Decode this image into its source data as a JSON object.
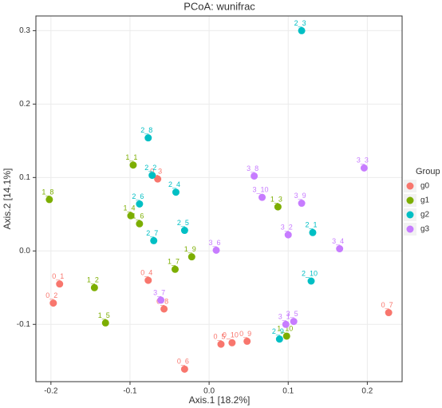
{
  "chart_data": {
    "type": "scatter",
    "title": "PCoA: wunifrac",
    "x_label": "Axis.1   [18.2%]",
    "y_label": "Axis.2   [14.1%]",
    "legend_title": "Group",
    "legend_position": "right",
    "grid": true,
    "xlim": [
      -0.219,
      0.244
    ],
    "ylim": [
      -0.178,
      0.32
    ],
    "xticks": [
      -0.2,
      -0.1,
      {
        "value": 0,
        "label": "0.0"
      },
      0.1,
      0.2
    ],
    "yticks": [
      -0.1,
      {
        "value": 0,
        "label": "0.0"
      },
      0.1,
      0.2,
      0.3
    ],
    "series": [
      {
        "name": "g0",
        "color": "#F8766D",
        "point_labels": [
          "0_1",
          "0_2",
          "0_3",
          "0_4",
          "0_5",
          "0_6",
          "0_7",
          "0_8",
          "0_9",
          "0_10"
        ],
        "x": [
          -0.189,
          -0.197,
          -0.065,
          -0.077,
          0.015,
          -0.031,
          0.227,
          -0.057,
          0.048,
          0.029
        ],
        "y": [
          -0.045,
          -0.071,
          0.098,
          -0.04,
          -0.127,
          -0.161,
          -0.084,
          -0.079,
          -0.123,
          -0.125
        ]
      },
      {
        "name": "g1",
        "color": "#7CAE00",
        "point_labels": [
          "1_1",
          "1_2",
          "1_3",
          "1_4",
          "1_5",
          "1_6",
          "1_7",
          "1_8",
          "1_9",
          "1_10"
        ],
        "x": [
          -0.096,
          -0.145,
          0.087,
          -0.099,
          -0.131,
          -0.088,
          -0.043,
          -0.202,
          -0.022,
          0.098
        ],
        "y": [
          0.117,
          -0.05,
          0.06,
          0.048,
          -0.098,
          0.037,
          -0.025,
          0.07,
          -0.008,
          -0.116
        ]
      },
      {
        "name": "g2",
        "color": "#00BFC4",
        "point_labels": [
          "2_1",
          "2_2",
          "2_3",
          "2_4",
          "2_5",
          "2_6",
          "2_7",
          "2_8",
          "2_9",
          "2_10"
        ],
        "x": [
          0.131,
          -0.072,
          0.117,
          -0.042,
          -0.031,
          -0.088,
          -0.07,
          -0.077,
          0.089,
          0.129
        ],
        "y": [
          0.025,
          0.103,
          0.3,
          0.08,
          0.028,
          0.064,
          0.014,
          0.154,
          -0.12,
          -0.041
        ]
      },
      {
        "name": "g3",
        "color": "#C77CFF",
        "point_labels": [
          "3_1",
          "3_2",
          "3_3",
          "3_4",
          "3_5",
          "3_6",
          "3_7",
          "3_8",
          "3_9",
          "3_10"
        ],
        "x": [
          0.097,
          0.1,
          0.196,
          0.165,
          0.107,
          0.009,
          -0.061,
          0.057,
          0.117,
          0.067
        ],
        "y": [
          -0.1,
          0.022,
          0.113,
          0.003,
          -0.096,
          0.001,
          -0.067,
          0.102,
          0.065,
          0.073
        ]
      }
    ]
  }
}
